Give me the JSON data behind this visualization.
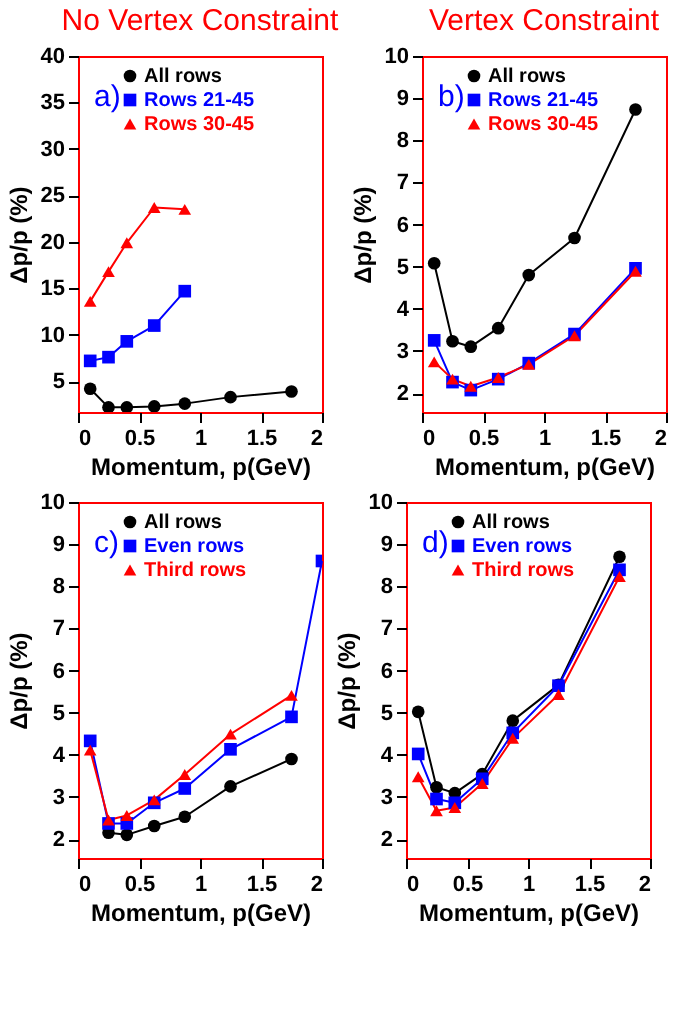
{
  "chart_data": [
    {
      "type": "line",
      "title": "No Vertex Constraint",
      "xlabel": "Momentum, p(GeV)",
      "ylabel": "Δp/p (%)",
      "annotations": [
        "a)"
      ],
      "x": [
        0.1,
        0.25,
        0.4,
        0.625,
        0.875,
        1.25,
        1.75
      ],
      "xlim": [
        0,
        2
      ],
      "xticks": [
        0,
        0.5,
        1,
        1.5,
        2
      ],
      "ylim": [
        1.7,
        40
      ],
      "yticks": [
        5,
        10,
        15,
        20,
        25,
        30,
        35,
        40
      ],
      "legend": "top",
      "grid": false,
      "series": [
        {
          "name": "All rows",
          "color": "#000000",
          "marker": "circle",
          "values": [
            4.2,
            2.2,
            2.2,
            2.3,
            2.6,
            3.3,
            3.9
          ]
        },
        {
          "name": "Rows 21-45",
          "color": "#0000ff",
          "marker": "square",
          "values": [
            7.2,
            7.6,
            9.3,
            11.0,
            14.7,
            null,
            null
          ]
        },
        {
          "name": "Rows 30-45",
          "color": "#ff0000",
          "marker": "triangle",
          "values": [
            13.6,
            16.8,
            19.9,
            23.7,
            23.5,
            null,
            null
          ]
        }
      ]
    },
    {
      "type": "line",
      "title": "Vertex Constraint",
      "xlabel": "Momentum, p(GeV)",
      "ylabel": "Δp/p (%)",
      "annotations": [
        "b)"
      ],
      "x": [
        0.1,
        0.25,
        0.4,
        0.625,
        0.875,
        1.25,
        1.75
      ],
      "xlim": [
        0,
        2
      ],
      "xticks": [
        0,
        0.5,
        1,
        1.5,
        2
      ],
      "ylim": [
        1.55,
        10
      ],
      "yticks": [
        2,
        3,
        4,
        5,
        6,
        7,
        8,
        9,
        10
      ],
      "legend": "top",
      "grid": false,
      "series": [
        {
          "name": "All rows",
          "color": "#000000",
          "marker": "circle",
          "values": [
            5.08,
            3.23,
            3.1,
            3.54,
            4.8,
            5.68,
            8.73
          ]
        },
        {
          "name": "Rows 21-45",
          "color": "#0000ff",
          "marker": "square",
          "values": [
            3.25,
            2.26,
            2.07,
            2.33,
            2.71,
            3.4,
            4.96
          ]
        },
        {
          "name": "Rows 30-45",
          "color": "#ff0000",
          "marker": "triangle",
          "values": [
            2.74,
            2.33,
            2.16,
            2.37,
            2.68,
            3.36,
            4.89
          ]
        }
      ]
    },
    {
      "type": "line",
      "xlabel": "Momentum, p(GeV)",
      "ylabel": "Δp/p (%)",
      "annotations": [
        "c)"
      ],
      "x": [
        0.1,
        0.25,
        0.4,
        0.625,
        0.875,
        1.25,
        1.75
      ],
      "xlim": [
        0,
        2
      ],
      "xticks": [
        0,
        0.5,
        1,
        1.5,
        2
      ],
      "ylim": [
        1.55,
        10
      ],
      "yticks": [
        2,
        3,
        4,
        5,
        6,
        7,
        8,
        9,
        10
      ],
      "legend": "top",
      "grid": false,
      "series": [
        {
          "name": "All rows",
          "color": "#000000",
          "marker": "circle",
          "values": [
            null,
            2.15,
            2.1,
            2.31,
            2.53,
            3.25,
            3.9
          ]
        },
        {
          "name": "Even rows",
          "color": "#0000ff",
          "marker": "square",
          "x": [
            0.1,
            0.25,
            0.4,
            0.625,
            0.875,
            1.25,
            1.75,
            2.0
          ],
          "values": [
            4.33,
            2.37,
            2.37,
            2.86,
            3.2,
            4.13,
            4.9,
            8.6
          ]
        },
        {
          "name": "Third rows",
          "color": "#ff0000",
          "marker": "triangle",
          "values": [
            4.11,
            2.45,
            2.56,
            2.93,
            3.53,
            4.49,
            5.41
          ]
        }
      ]
    },
    {
      "type": "line",
      "xlabel": "Momentum, p(GeV)",
      "ylabel": "Δp/p (%)",
      "annotations": [
        "d)"
      ],
      "x": [
        0.1,
        0.25,
        0.4,
        0.625,
        0.875,
        1.25,
        1.75
      ],
      "xlim": [
        0,
        2
      ],
      "xticks": [
        0,
        0.5,
        1,
        1.5,
        2
      ],
      "ylim": [
        1.55,
        10
      ],
      "yticks": [
        2,
        3,
        4,
        5,
        6,
        7,
        8,
        9,
        10
      ],
      "legend": "top",
      "grid": false,
      "series": [
        {
          "name": "All rows",
          "color": "#000000",
          "marker": "circle",
          "values": [
            5.02,
            3.23,
            3.09,
            3.54,
            4.81,
            5.66,
            8.7
          ]
        },
        {
          "name": "Even rows",
          "color": "#0000ff",
          "marker": "square",
          "values": [
            4.02,
            2.95,
            2.86,
            3.43,
            4.52,
            5.64,
            8.39
          ]
        },
        {
          "name": "Third rows",
          "color": "#ff0000",
          "marker": "triangle",
          "values": [
            3.48,
            2.67,
            2.75,
            3.32,
            4.39,
            5.43,
            8.23
          ]
        }
      ]
    }
  ]
}
